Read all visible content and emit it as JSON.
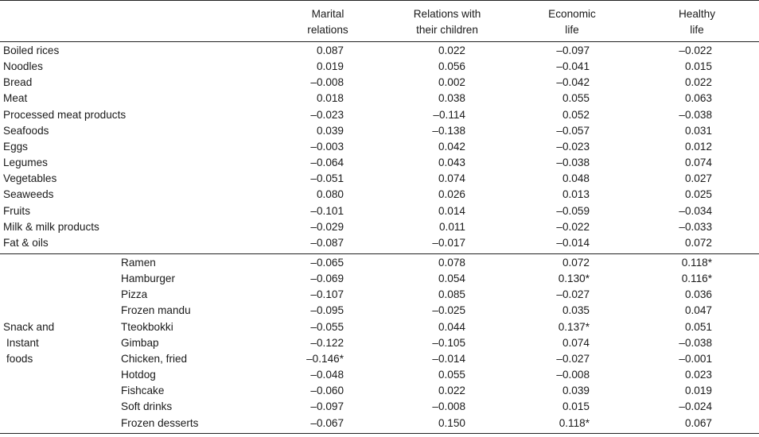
{
  "headers": [
    {
      "line1": "Marital",
      "line2": "relations"
    },
    {
      "line1": "Relations with",
      "line2": "their children"
    },
    {
      "line1": "Economic",
      "line2": "life"
    },
    {
      "line1": "Healthy",
      "line2": "life"
    }
  ],
  "food_rows": [
    {
      "label": "Boiled rices",
      "values": [
        "0.087",
        "0.022",
        "–0.097",
        "–0.022"
      ]
    },
    {
      "label": "Noodles",
      "values": [
        "0.019",
        "0.056",
        "–0.041",
        "0.015"
      ]
    },
    {
      "label": "Bread",
      "values": [
        "–0.008",
        "0.002",
        "–0.042",
        "0.022"
      ]
    },
    {
      "label": "Meat",
      "values": [
        "0.018",
        "0.038",
        "0.055",
        "0.063"
      ]
    },
    {
      "label": "Processed meat products",
      "values": [
        "–0.023",
        "–0.114",
        "0.052",
        "–0.038"
      ]
    },
    {
      "label": "Seafoods",
      "values": [
        "0.039",
        "–0.138",
        "–0.057",
        "0.031"
      ]
    },
    {
      "label": "Eggs",
      "values": [
        "–0.003",
        "0.042",
        "–0.023",
        "0.012"
      ]
    },
    {
      "label": "Legumes",
      "values": [
        "–0.064",
        "0.043",
        "–0.038",
        "0.074"
      ]
    },
    {
      "label": "Vegetables",
      "values": [
        "–0.051",
        "0.074",
        "0.048",
        "0.027"
      ]
    },
    {
      "label": "Seaweeds",
      "values": [
        "0.080",
        "0.026",
        "0.013",
        "0.025"
      ]
    },
    {
      "label": "Fruits",
      "values": [
        "–0.101",
        "0.014",
        "–0.059",
        "–0.034"
      ]
    },
    {
      "label": "Milk & milk products",
      "values": [
        "–0.029",
        "0.011",
        "–0.022",
        "–0.033"
      ]
    },
    {
      "label": "Fat & oils",
      "values": [
        "–0.087",
        "–0.017",
        "–0.014",
        "0.072"
      ]
    }
  ],
  "snack_group": {
    "label_lines": [
      "Snack and",
      "Instant",
      "foods"
    ],
    "rows": [
      {
        "label": "Ramen",
        "values": [
          "–0.065",
          "0.078",
          "0.072",
          "0.118*"
        ]
      },
      {
        "label": "Hamburger",
        "values": [
          "–0.069",
          "0.054",
          "0.130*",
          "0.116*"
        ]
      },
      {
        "label": "Pizza",
        "values": [
          "–0.107",
          "0.085",
          "–0.027",
          "0.036"
        ]
      },
      {
        "label": "Frozen mandu",
        "values": [
          "–0.095",
          "–0.025",
          "0.035",
          "0.047"
        ]
      },
      {
        "label": "Tteokbokki",
        "values": [
          "–0.055",
          "0.044",
          "0.137*",
          "0.051"
        ]
      },
      {
        "label": "Gimbap",
        "values": [
          "–0.122",
          "–0.105",
          "0.074",
          "–0.038"
        ]
      },
      {
        "label": "Chicken, fried",
        "values": [
          "–0.146*",
          "–0.014",
          "–0.027",
          "–0.001"
        ]
      },
      {
        "label": "Hotdog",
        "values": [
          "–0.048",
          "0.055",
          "–0.008",
          "0.023"
        ]
      },
      {
        "label": "Fishcake",
        "values": [
          "–0.060",
          "0.022",
          "0.039",
          "0.019"
        ]
      },
      {
        "label": "Soft drinks",
        "values": [
          "–0.097",
          "–0.008",
          "0.015",
          "–0.024"
        ]
      },
      {
        "label": "Frozen desserts",
        "values": [
          "–0.067",
          "0.150",
          "0.118*",
          "0.067"
        ]
      }
    ]
  }
}
